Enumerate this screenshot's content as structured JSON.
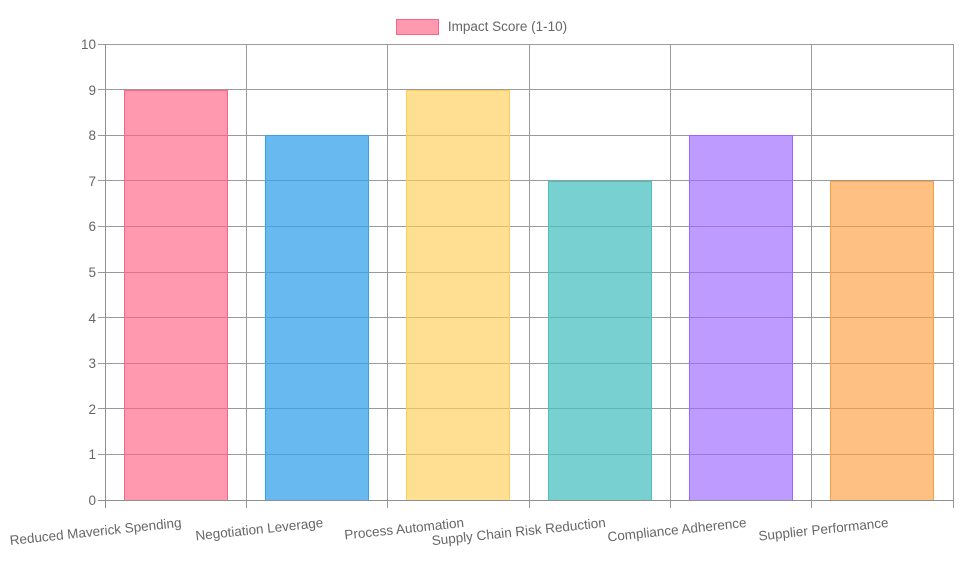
{
  "legend": {
    "label": "Impact Score (1-10)"
  },
  "chart_data": {
    "type": "bar",
    "title": "",
    "xlabel": "",
    "ylabel": "",
    "categories": [
      "Reduced Maverick Spending",
      "Negotiation Leverage",
      "Process Automation",
      "Supply Chain Risk Reduction",
      "Compliance Adherence",
      "Supplier Performance"
    ],
    "series": [
      {
        "name": "Impact Score (1-10)",
        "values": [
          9,
          8,
          9,
          7,
          8,
          7
        ]
      }
    ],
    "ylim": [
      0,
      10
    ],
    "yticks": [
      0,
      1,
      2,
      3,
      4,
      5,
      6,
      7,
      8,
      9,
      10
    ],
    "grid": true,
    "legend_position": "top-center",
    "bar_fills": [
      "rgba(255,99,132,0.65)",
      "rgba(54,162,235,0.75)",
      "rgba(255,206,86,0.65)",
      "rgba(75,192,192,0.75)",
      "rgba(153,102,255,0.65)",
      "rgba(255,159,64,0.65)"
    ],
    "bar_borders": [
      "#FF6384",
      "#36A2EB",
      "#FFCE56",
      "#4BC0C0",
      "#9966FF",
      "#FF9F40"
    ]
  },
  "colors": {
    "grid": "#9b9b9b",
    "axis": "#8f8f8f",
    "tick_label": "#666666",
    "legend_label": "#666666"
  }
}
